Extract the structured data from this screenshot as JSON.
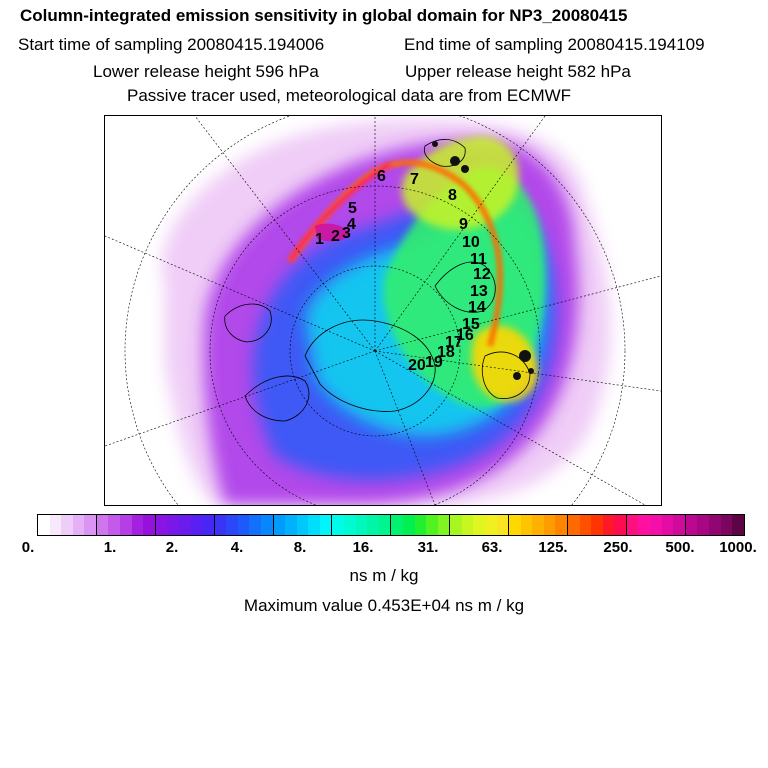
{
  "title": "Column-integrated emission sensitivity in global domain for NP3_20080415",
  "sampling": {
    "start": "Start time of sampling 20080415.194006",
    "end": "End time of sampling 20080415.194109"
  },
  "release": {
    "lower": "Lower release height  596 hPa",
    "upper": "Upper release height  582 hPa"
  },
  "tracer_note": "Passive tracer used, meteorological data are from ECMWF",
  "map": {
    "day_markers": [
      "1",
      "2",
      "3",
      "4",
      "5",
      "6",
      "7",
      "8",
      "9",
      "10",
      "11",
      "12",
      "13",
      "14",
      "15",
      "16",
      "17",
      "18",
      "19",
      "20"
    ]
  },
  "colorbar": {
    "tick_labels": [
      "0.",
      "1.",
      "2.",
      "4.",
      "8.",
      "16.",
      "31.",
      "63.",
      "125.",
      "250.",
      "500.",
      "1000."
    ],
    "colors": [
      "#ffffff",
      "#f7e8fc",
      "#efcdf9",
      "#e6b0f6",
      "#dc94f2",
      "#cf76ee",
      "#c35ae9",
      "#b53ee4",
      "#a521e0",
      "#9611dc",
      "#8a14e4",
      "#7a18ea",
      "#6a1cef",
      "#5a20f3",
      "#4a26f6",
      "#3a34f8",
      "#2c46fa",
      "#1e5afb",
      "#1270fc",
      "#0886fd",
      "#009cfd",
      "#00b2fd",
      "#00c8fd",
      "#00defd",
      "#00f4fc",
      "#00fce8",
      "#00fad2",
      "#00f8bc",
      "#00f6a6",
      "#00f490",
      "#00f270",
      "#00f050",
      "#20f030",
      "#50f220",
      "#80f420",
      "#a8f620",
      "#c8f620",
      "#e0f620",
      "#f0f020",
      "#f8e420",
      "#ffd800",
      "#ffc400",
      "#ffb000",
      "#ff9c00",
      "#ff8400",
      "#ff6a00",
      "#ff5000",
      "#ff3400",
      "#ff1828",
      "#ff0c50",
      "#ff1080",
      "#ff10a0",
      "#f410a8",
      "#e40ca4",
      "#d00a9c",
      "#bc0890",
      "#a80682",
      "#920672",
      "#7a0660",
      "#5c0446"
    ],
    "units": "ns m / kg"
  },
  "maximum": "Maximum value  0.453E+04 ns m / kg"
}
